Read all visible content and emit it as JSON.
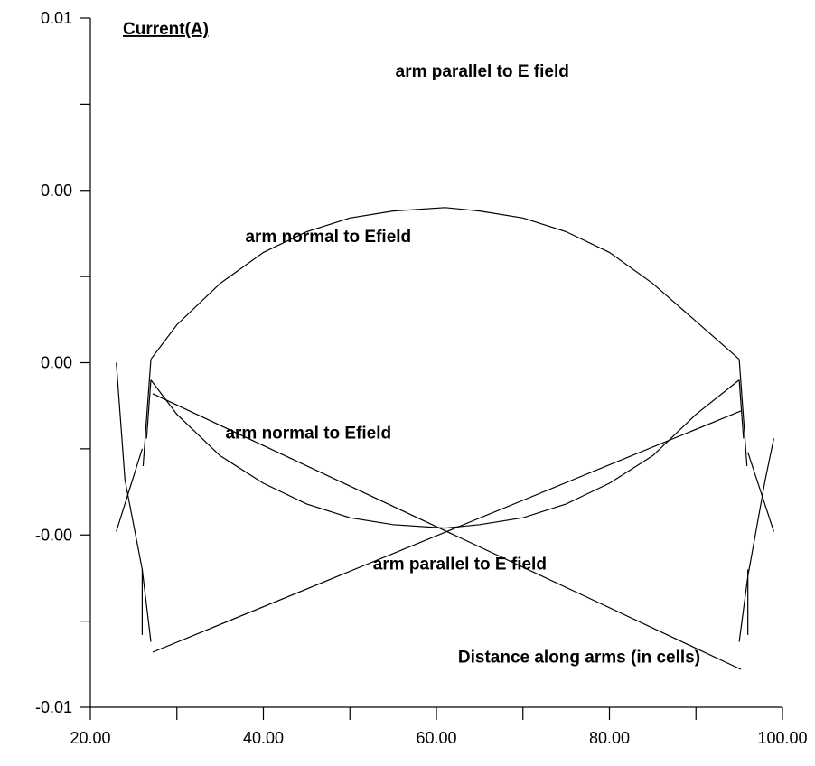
{
  "chart_data": {
    "type": "line",
    "title": "",
    "ylabel": "Current(A)",
    "xlabel": "Distance along arms (in cells)",
    "xlim": [
      20,
      100
    ],
    "ylim": [
      -0.01,
      0.01
    ],
    "x_ticks": [
      20,
      40,
      60,
      80,
      100
    ],
    "x_tick_labels": [
      "20.00",
      "40.00",
      "60.00",
      "80.00",
      "100.00"
    ],
    "x_minor_ticks": [
      30,
      50,
      70,
      90
    ],
    "y_ticks": [
      -0.01,
      -0.005,
      0,
      0.005,
      0.01
    ],
    "y_tick_labels": [
      "-0.01",
      "-0.00",
      "0.00",
      "0.00",
      "0.01"
    ],
    "y_minor_ticks": [
      -0.0075,
      -0.0025,
      0.0025,
      0.0075
    ],
    "grid": false,
    "annotations": [
      {
        "text": "arm parallel to E field",
        "x": 65.3,
        "y": 0.0083
      },
      {
        "text": "arm normal to Efield",
        "x": 47.5,
        "y": 0.0035
      },
      {
        "text": "arm normal to Efield",
        "x": 45.2,
        "y": -0.0022
      },
      {
        "text": "arm parallel to E field",
        "x": 62.7,
        "y": -0.006
      },
      {
        "text": "Distance along arms (in cells)",
        "x": 76.5,
        "y": -0.0087
      }
    ],
    "series": [
      {
        "points": [
          [
            27.0,
            0.0001
          ],
          [
            30.0,
            0.0011
          ],
          [
            35.0,
            0.0023
          ],
          [
            40.0,
            0.0032
          ],
          [
            45.0,
            0.0038
          ],
          [
            50.0,
            0.0042
          ],
          [
            55.0,
            0.0044
          ],
          [
            61.0,
            0.0045
          ],
          [
            65.0,
            0.0044
          ],
          [
            70.0,
            0.0042
          ],
          [
            75.0,
            0.0038
          ],
          [
            80.0,
            0.0032
          ],
          [
            85.0,
            0.0023
          ],
          [
            90.0,
            0.0012
          ],
          [
            95.0,
            0.0001
          ]
        ]
      },
      {
        "points": [
          [
            27.0,
            -0.0005
          ],
          [
            30.0,
            -0.0015
          ],
          [
            35.0,
            -0.0027
          ],
          [
            40.0,
            -0.0035
          ],
          [
            45.0,
            -0.0041
          ],
          [
            50.0,
            -0.0045
          ],
          [
            55.0,
            -0.0047
          ],
          [
            61.0,
            -0.0048
          ],
          [
            65.0,
            -0.0047
          ],
          [
            70.0,
            -0.0045
          ],
          [
            75.0,
            -0.0041
          ],
          [
            80.0,
            -0.0035
          ],
          [
            85.0,
            -0.0027
          ],
          [
            90.0,
            -0.0015
          ],
          [
            95.0,
            -0.0005
          ]
        ]
      },
      {
        "points": [
          [
            27.2,
            -0.0009
          ],
          [
            61.2,
            -0.0049
          ],
          [
            95.2,
            -0.0089
          ]
        ]
      },
      {
        "points": [
          [
            27.2,
            -0.0084
          ],
          [
            61.2,
            -0.0049
          ],
          [
            95.2,
            -0.0014
          ]
        ]
      },
      {
        "points": [
          [
            27.0,
            0.0001
          ],
          [
            26.1,
            -0.003
          ]
        ]
      },
      {
        "points": [
          [
            26.0,
            -0.0025
          ],
          [
            23.0,
            -0.0049
          ]
        ]
      },
      {
        "points": [
          [
            27.0,
            -0.0005
          ],
          [
            26.5,
            -0.0022
          ]
        ]
      },
      {
        "points": [
          [
            26.0,
            -0.006
          ],
          [
            26.0,
            -0.0079
          ]
        ]
      },
      {
        "points": [
          [
            23.0,
            0.0
          ],
          [
            24.0,
            -0.0034
          ],
          [
            26.0,
            -0.006
          ],
          [
            27.0,
            -0.0081
          ]
        ]
      },
      {
        "points": [
          [
            95.0,
            0.0001
          ],
          [
            95.9,
            -0.003
          ]
        ]
      },
      {
        "points": [
          [
            96.0,
            -0.0026
          ],
          [
            99.0,
            -0.0049
          ]
        ]
      },
      {
        "points": [
          [
            95.0,
            -0.0005
          ],
          [
            95.5,
            -0.0022
          ]
        ]
      },
      {
        "points": [
          [
            96.0,
            -0.006
          ],
          [
            96.0,
            -0.0079
          ]
        ]
      },
      {
        "points": [
          [
            99.0,
            -0.0022
          ],
          [
            98.0,
            -0.0034
          ],
          [
            96.0,
            -0.0062
          ],
          [
            95.0,
            -0.0081
          ]
        ]
      }
    ]
  }
}
